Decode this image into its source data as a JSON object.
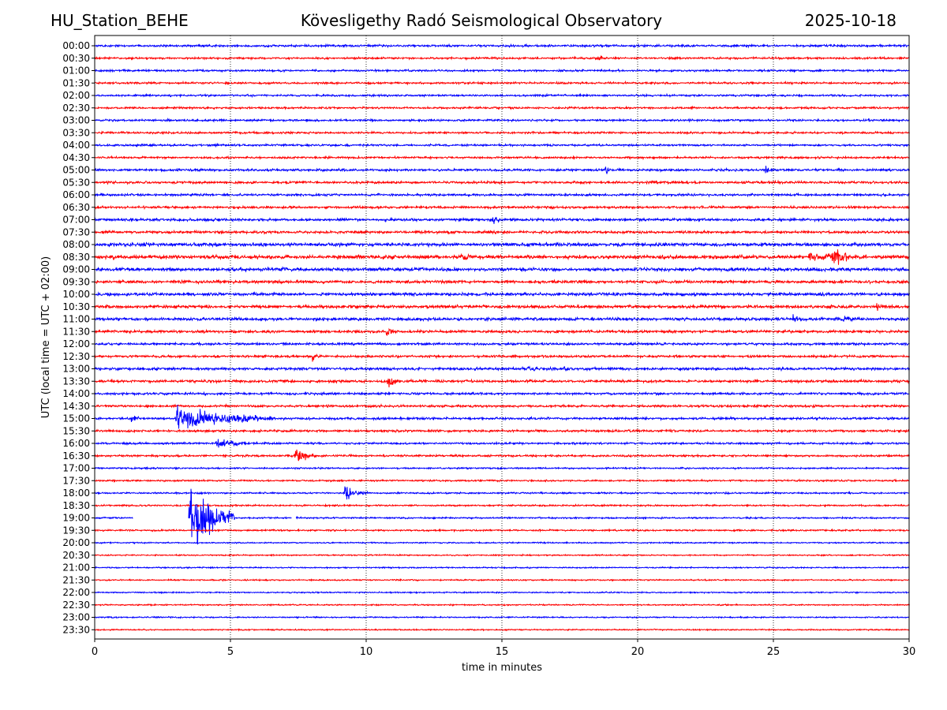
{
  "header": {
    "station": "HU_Station_BEHE",
    "observatory": "Kövesligethy Radó Seismological Observatory",
    "date": "2025-10-18"
  },
  "chart_data": {
    "type": "line",
    "title": "Kövesligethy Radó Seismological Observatory",
    "xlabel": "time in minutes",
    "ylabel": "UTC (local time = UTC + 02:00)",
    "xlim": [
      0,
      30
    ],
    "x_ticks": [
      "0",
      "5",
      "10",
      "15",
      "20",
      "25",
      "30"
    ],
    "grid": "vertical dotted at each x tick",
    "colors": {
      "even_rows": "#0000ff",
      "odd_rows": "#ff0000",
      "grid": "#000000"
    },
    "rows": [
      "00:00",
      "00:30",
      "01:00",
      "01:30",
      "02:00",
      "02:30",
      "03:00",
      "03:30",
      "04:00",
      "04:30",
      "05:00",
      "05:30",
      "06:00",
      "06:30",
      "07:00",
      "07:30",
      "08:00",
      "08:30",
      "09:00",
      "09:30",
      "10:00",
      "10:30",
      "11:00",
      "11:30",
      "12:00",
      "12:30",
      "13:00",
      "13:30",
      "14:00",
      "14:30",
      "15:00",
      "15:30",
      "16:00",
      "16:30",
      "17:00",
      "17:30",
      "18:00",
      "18:30",
      "19:00",
      "19:30",
      "20:00",
      "20:30",
      "21:00",
      "21:30",
      "22:00",
      "22:30",
      "23:00",
      "23:30"
    ],
    "noise_level": [
      0.7,
      0.6,
      0.6,
      0.6,
      0.6,
      0.6,
      0.6,
      0.6,
      0.6,
      0.6,
      0.7,
      0.7,
      0.7,
      0.7,
      0.8,
      0.8,
      1.0,
      1.1,
      1.0,
      0.9,
      0.9,
      0.9,
      0.9,
      0.8,
      0.7,
      0.7,
      0.8,
      0.8,
      0.7,
      0.7,
      0.7,
      0.7,
      0.6,
      0.6,
      0.5,
      0.5,
      0.5,
      0.5,
      0.5,
      0.5,
      0.4,
      0.4,
      0.4,
      0.4,
      0.4,
      0.4,
      0.4,
      0.4
    ],
    "events": [
      {
        "row": "00:30",
        "minute": 18.5,
        "amplitude": 2.5,
        "duration": 0.4
      },
      {
        "row": "05:00",
        "minute": 18.8,
        "amplitude": 5,
        "duration": 0.2
      },
      {
        "row": "05:00",
        "minute": 24.7,
        "amplitude": 4,
        "duration": 0.2
      },
      {
        "row": "07:00",
        "minute": 14.6,
        "amplitude": 6,
        "duration": 0.3
      },
      {
        "row": "08:30",
        "minute": 13.5,
        "amplitude": 5,
        "duration": 0.3
      },
      {
        "row": "08:30",
        "minute": 26.3,
        "amplitude": 5,
        "duration": 1.2
      },
      {
        "row": "08:30",
        "minute": 27.2,
        "amplitude": 14,
        "duration": 0.6
      },
      {
        "row": "10:30",
        "minute": 28.8,
        "amplitude": 4,
        "duration": 0.2
      },
      {
        "row": "11:00",
        "minute": 25.7,
        "amplitude": 6,
        "duration": 0.2
      },
      {
        "row": "11:00",
        "minute": 27.6,
        "amplitude": 5,
        "duration": 0.3
      },
      {
        "row": "11:30",
        "minute": 10.7,
        "amplitude": 5,
        "duration": 0.3
      },
      {
        "row": "12:30",
        "minute": 8.0,
        "amplitude": 5,
        "duration": 0.2
      },
      {
        "row": "13:00",
        "minute": 16.0,
        "amplitude": 3,
        "duration": 0.4
      },
      {
        "row": "13:00",
        "minute": 17.2,
        "amplitude": 3,
        "duration": 0.4
      },
      {
        "row": "13:30",
        "minute": 10.8,
        "amplitude": 8,
        "duration": 0.4
      },
      {
        "row": "15:00",
        "minute": 1.3,
        "amplitude": 8,
        "duration": 0.4
      },
      {
        "row": "15:00",
        "minute": 3.0,
        "amplitude": 12,
        "duration": 3.5
      },
      {
        "row": "16:00",
        "minute": 4.5,
        "amplitude": 5,
        "duration": 1.0
      },
      {
        "row": "16:30",
        "minute": 7.4,
        "amplitude": 9,
        "duration": 0.7
      },
      {
        "row": "18:00",
        "minute": 9.2,
        "amplitude": 7,
        "duration": 0.8
      },
      {
        "row": "19:00",
        "minute": 3.5,
        "amplitude": 38,
        "duration": 1.6
      }
    ],
    "gaps": [
      {
        "row": "19:00",
        "from_minute": 1.4,
        "to_minute": 3.45
      },
      {
        "row": "19:00",
        "from_minute": 7.25,
        "to_minute": 7.4
      }
    ]
  }
}
